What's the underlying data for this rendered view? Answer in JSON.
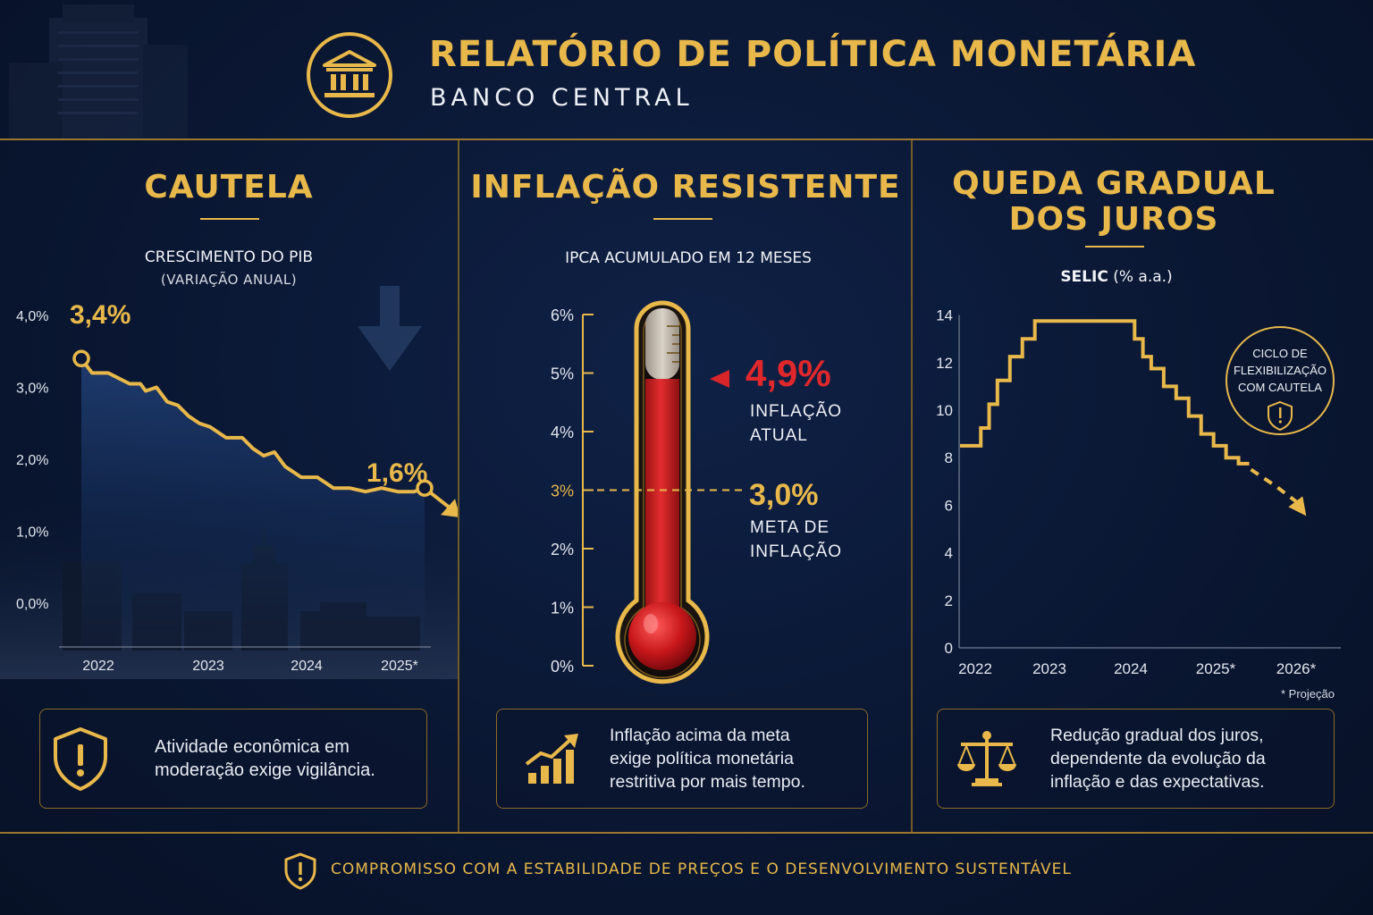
{
  "header": {
    "title": "RELATÓRIO DE POLÍTICA MONETÁRIA",
    "subtitle": "BANCO CENTRAL"
  },
  "panels": {
    "gdp": {
      "title": "CAUTELA",
      "chart_label": "CRESCIMENTO DO PIB",
      "chart_sub": "(VARIAÇÃO ANUAL)",
      "note": "Atividade econômica em moderação exige vigilância."
    },
    "inflation": {
      "title": "INFLAÇÃO RESISTENTE",
      "chart_label": "IPCA ACUMULADO EM 12 MESES",
      "current_value": "4,9%",
      "current_label_1": "INFLAÇÃO",
      "current_label_2": "ATUAL",
      "target_value": "3,0%",
      "target_label_1": "META DE",
      "target_label_2": "INFLAÇÃO",
      "note": "Inflação acima da meta exige política monetária restritiva por mais tempo."
    },
    "selic": {
      "title_1": "QUEDA GRADUAL",
      "title_2": "DOS JUROS",
      "chart_label": "SELIC",
      "chart_unit": "(% a.a.)",
      "badge_1": "CICLO DE",
      "badge_2": "FLEXIBILIZAÇÃO",
      "badge_3": "COM CAUTELA",
      "projection_note": "* Projeção",
      "note": "Redução gradual dos juros, dependente da evolução da inflação e das expectativas."
    }
  },
  "footer": {
    "text": "COMPROMISSO COM A ESTABILIDADE DE PREÇOS E O DESENVOLVIMENTO SUSTENTÁVEL"
  },
  "colors": {
    "gold": "#e8b84a",
    "red": "#d7262a",
    "navy": "#0a1733"
  },
  "chart_data": [
    {
      "type": "line",
      "title": "CRESCIMENTO DO PIB",
      "subtitle": "(VARIAÇÃO ANUAL)",
      "y_ticks": [
        "4,0%",
        "3,0%",
        "2,0%",
        "1,0%",
        "0,0%"
      ],
      "x_ticks": [
        "2022",
        "2023",
        "2024",
        "2025*"
      ],
      "ylim": [
        0,
        4.5
      ],
      "series": [
        {
          "x": [
            0.0,
            0.1,
            0.25,
            0.45,
            0.55,
            0.6,
            0.7,
            0.8,
            0.9,
            1.0,
            1.1,
            1.2,
            1.35,
            1.5,
            1.6,
            1.7,
            1.8,
            1.9,
            2.05,
            2.2,
            2.35,
            2.5,
            2.65,
            2.8,
            2.95,
            3.1,
            3.2
          ],
          "values": [
            3.4,
            3.2,
            3.2,
            3.05,
            3.05,
            2.95,
            3.0,
            2.8,
            2.75,
            2.6,
            2.5,
            2.45,
            2.3,
            2.3,
            2.15,
            2.05,
            2.1,
            1.9,
            1.75,
            1.75,
            1.6,
            1.6,
            1.55,
            1.6,
            1.55,
            1.55,
            1.6
          ]
        }
      ],
      "annotations": [
        {
          "label": "3,4%",
          "at": "start"
        },
        {
          "label": "1,6%",
          "at": "end"
        }
      ]
    },
    {
      "type": "gauge",
      "title": "IPCA ACUMULADO EM 12 MESES",
      "y_ticks": [
        "6%",
        "5%",
        "4%",
        "3%",
        "2%",
        "1%",
        "0%"
      ],
      "ylim": [
        0,
        6
      ],
      "current": 4.9,
      "target": 3.0
    },
    {
      "type": "line",
      "title": "SELIC",
      "subtitle": "(% a.a.)",
      "y_ticks": [
        "14",
        "12",
        "10",
        "8",
        "6",
        "4",
        "2",
        "0"
      ],
      "x_ticks": [
        "2022",
        "2023",
        "2024",
        "2025*",
        "2026*"
      ],
      "ylim": [
        0,
        14
      ],
      "series": [
        {
          "style": "step",
          "x": [
            0.0,
            0.15,
            0.25,
            0.35,
            0.45,
            0.6,
            0.75,
            0.9,
            1.1,
            1.35,
            1.6,
            1.9,
            2.1,
            2.2,
            2.3,
            2.45,
            2.6,
            2.75,
            2.9,
            3.05,
            3.2,
            3.35
          ],
          "values": [
            8.5,
            8.5,
            9.25,
            10.25,
            11.25,
            12.25,
            13.0,
            13.75,
            13.75,
            13.75,
            13.75,
            13.75,
            13.0,
            12.25,
            11.75,
            11.0,
            10.5,
            9.75,
            9.0,
            8.5,
            8.0,
            7.75
          ]
        },
        {
          "style": "dashed",
          "name": "* Projeção",
          "x": [
            3.5,
            3.8,
            4.1
          ],
          "values": [
            7.5,
            6.8,
            6.0
          ]
        }
      ]
    }
  ]
}
